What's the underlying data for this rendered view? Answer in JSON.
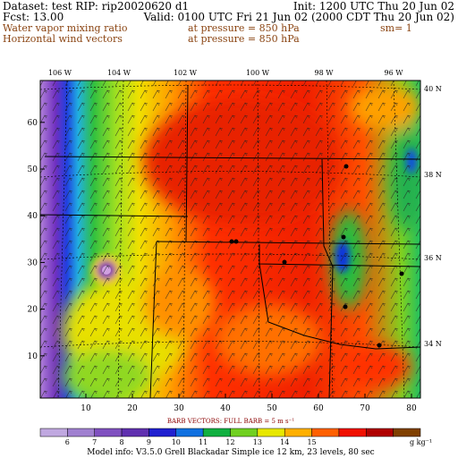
{
  "header": {
    "dataset": "Dataset: test  RIP: rip20020620  d1",
    "init": "Init: 1200 UTC Thu 20 Jun 02",
    "fcst": "Fcst:    13.00",
    "valid": "Valid: 0100 UTC Fri 21 Jun 02 (2000 CDT Thu 20 Jun 02)",
    "field1": "Water vapor mixing ratio",
    "pressure1": "at pressure =  850 hPa",
    "smoothing": "sm= 1",
    "field2": "Horizontal wind vectors",
    "pressure2": "at pressure =  850 hPa"
  },
  "map": {
    "x_ticks": [
      10,
      20,
      30,
      40,
      50,
      60,
      70,
      80
    ],
    "y_ticks": [
      10,
      20,
      30,
      40,
      50,
      60
    ],
    "lon_labels": [
      "106 W",
      "104 W",
      "102 W",
      "100 W",
      "98 W",
      "96 W"
    ],
    "lat_labels": [
      "40 N",
      "38 N",
      "36 N",
      "34 N"
    ]
  },
  "barb_note": "BARB VECTORS:  FULL BARB = 5 m s⁻¹",
  "colorbar": {
    "labels": [
      "6",
      "7",
      "8",
      "9",
      "10",
      "11",
      "12",
      "13",
      "14",
      "15"
    ],
    "unit": "g kg⁻¹"
  },
  "footer": "Model info: V3.5.0    Grell      Blackadar   Simple ice    12 km,  23 levels,   80 sec"
}
